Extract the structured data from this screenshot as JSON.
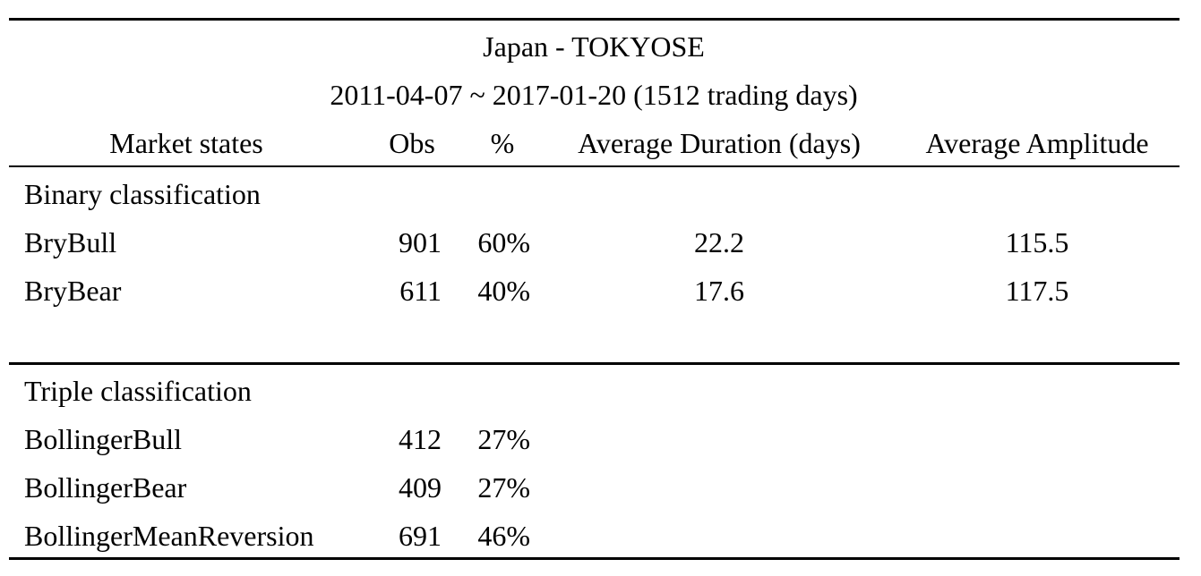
{
  "table": {
    "title": "Japan - TOKYOSE",
    "subtitle": "2011-04-07 ~ 2017-01-20 (1512 trading days)",
    "headers": {
      "state": "Market states",
      "obs": "Obs",
      "pct": "%",
      "duration": "Average Duration (days)",
      "amplitude": "Average Amplitude"
    },
    "binary": {
      "heading": "Binary classification",
      "rows": [
        {
          "state": "BryBull",
          "obs": "901",
          "pct": "60%",
          "duration": "22.2",
          "amplitude": "115.5"
        },
        {
          "state": "BryBear",
          "obs": "611",
          "pct": "40%",
          "duration": "17.6",
          "amplitude": "117.5"
        }
      ]
    },
    "triple": {
      "heading": "Triple classification",
      "rows": [
        {
          "state": "BollingerBull",
          "obs": "412",
          "pct": "27%"
        },
        {
          "state": "BollingerBear",
          "obs": "409",
          "pct": "27%"
        },
        {
          "state": "BollingerMeanReversion",
          "obs": "691",
          "pct": "46%"
        }
      ]
    }
  }
}
